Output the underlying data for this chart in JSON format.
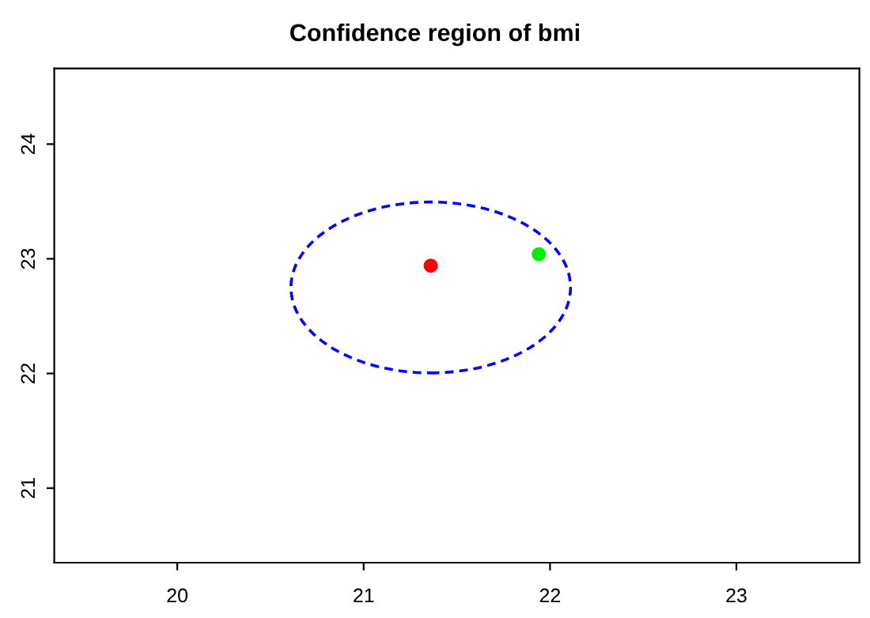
{
  "chart_data": {
    "type": "scatter",
    "title": "Confidence region of bmi",
    "xlim": [
      19.34,
      23.66
    ],
    "ylim": [
      20.35,
      24.66
    ],
    "xticks": [
      20,
      21,
      22,
      23
    ],
    "yticks": [
      21,
      22,
      23,
      24
    ],
    "grid": false,
    "legend": false,
    "marker": "circle",
    "series": [
      {
        "color": "#ff0000",
        "x": [
          21.36
        ],
        "values": [
          22.94
        ]
      },
      {
        "color": "#00ee00",
        "x": [
          21.94
        ],
        "values": [
          23.04
        ]
      }
    ]
  }
}
